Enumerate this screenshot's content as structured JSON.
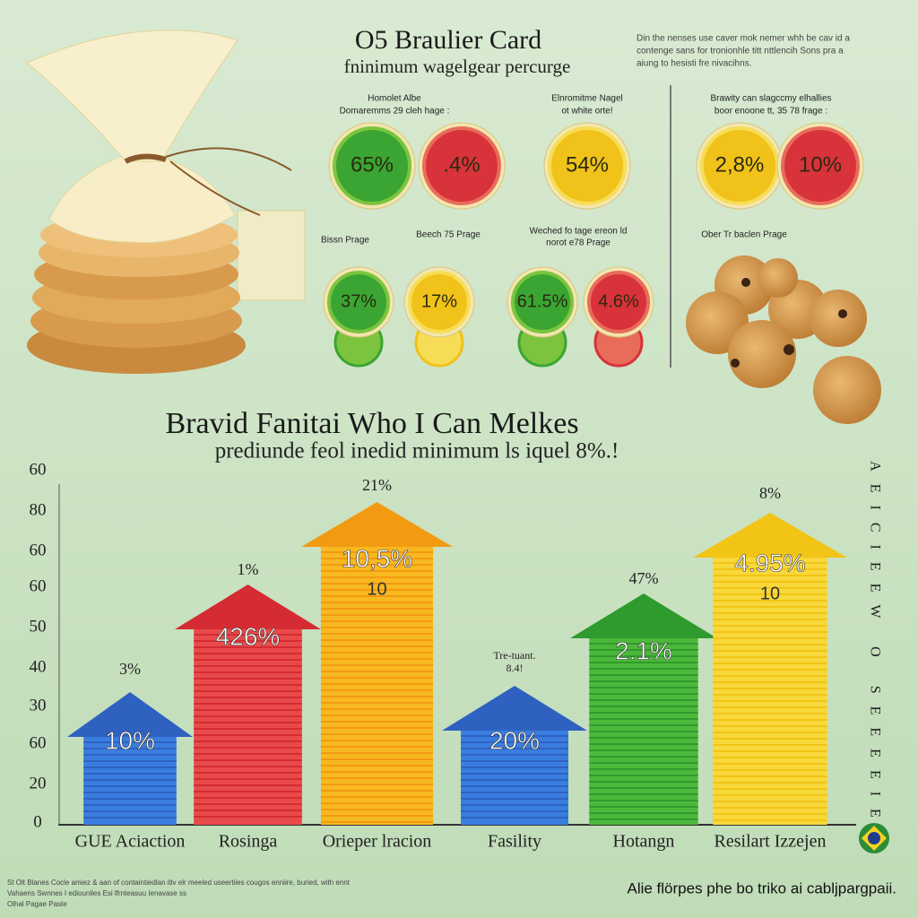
{
  "header": {
    "title": "O5 Braulier Card",
    "subtitle": "fninimum wagelgear percurge",
    "note": [
      "Din the nenses use caver mok nemer whh be cav id a",
      "contenge sans for tronionhle titt nttlencih Sons pra a",
      "aiung to hesisti fre nivacihns."
    ]
  },
  "groups": [
    {
      "caption": [
        "Homolet Albe",
        "Domaremms 29 cleh hage :"
      ],
      "circles": [
        "65%",
        ".4%"
      ]
    },
    {
      "caption": [
        "Elnromitme Nagel",
        "ot white orte!"
      ],
      "circles": [
        "54%"
      ]
    },
    {
      "caption": [
        "Brawity can slagccmy elhallies",
        "boor enoone tt, 35 78 frage :"
      ],
      "circles": [
        "2,8%",
        "10%"
      ]
    }
  ],
  "subgroups": [
    {
      "caption": [
        "Bissn Prage"
      ],
      "circles": [
        "37%"
      ]
    },
    {
      "caption": [
        "Beech 75 Prage"
      ],
      "circles": [
        "17%"
      ]
    },
    {
      "caption": [
        "Weched fo tage ereon ld",
        "norot e78 Prage"
      ],
      "circles": [
        "61.5%",
        "4.6%"
      ]
    },
    {
      "caption": [
        "Ober Tr baclen Prage"
      ],
      "circles": []
    }
  ],
  "section": {
    "title": "Bravid Fanitai Who I Can Melkes",
    "subtitle": "prediunde feol inedid minimum ls iquel 8%.!"
  },
  "axis_labels": [
    "60",
    "80",
    "60",
    "60",
    "50",
    "40",
    "30",
    "60",
    "20",
    "0"
  ],
  "bars": [
    {
      "category": "GUE Aciaction",
      "top_label": [
        "3%"
      ],
      "inner": [
        "10%"
      ]
    },
    {
      "category": "Rosinga",
      "top_label": [
        "1%"
      ],
      "inner": [
        "426%"
      ]
    },
    {
      "category": "Orieper lracion",
      "top_label": [
        "21%"
      ],
      "inner": [
        "10,5%",
        "10"
      ]
    },
    {
      "category": "Fasility",
      "top_label": [
        "Tre-tuant.",
        "8.4!"
      ],
      "inner": [
        "20%"
      ]
    },
    {
      "category": "Hotangn",
      "top_label": [
        "47%"
      ],
      "inner": [
        "2.1%"
      ]
    },
    {
      "category": "Resilart Izzejen",
      "top_label": [
        "8%"
      ],
      "inner": [
        "4.95%",
        "10"
      ]
    }
  ],
  "side_text": "AEICIEEW O SEEEEIE",
  "footer": {
    "left": [
      "St Olt Blanes Cocle amiez & aan of containtiedlan itlv elr meeled useertiies cougos enniire, buried, with ennt",
      "Vahaens Swnnes I ediouniles Esi lfrnteasuu Ienavase ss",
      "Olhal Pagae Paste"
    ],
    "right": "Alie flörpes phe bo triko ai cabljpargpaii."
  }
}
